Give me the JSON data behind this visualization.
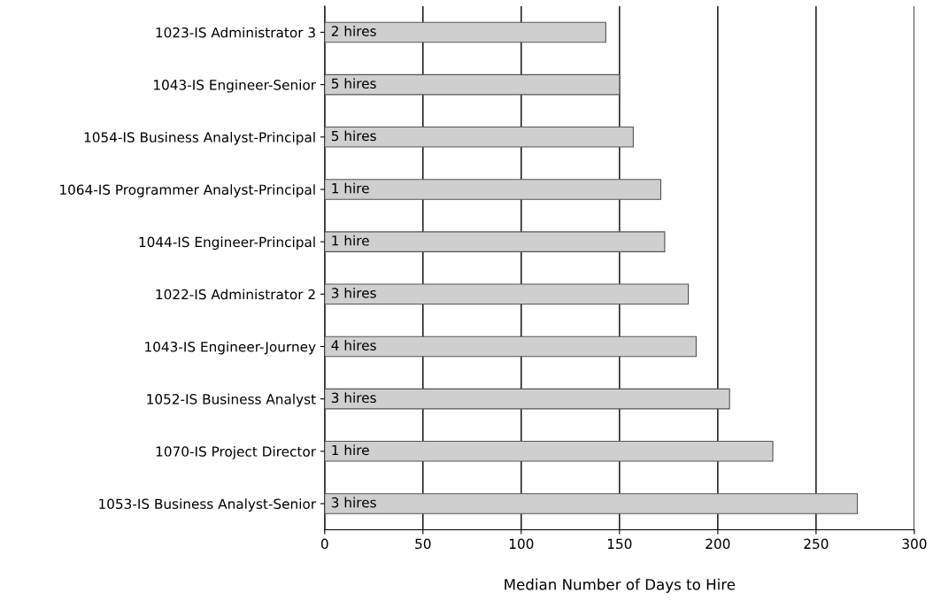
{
  "chart_data": {
    "type": "bar",
    "orientation": "horizontal",
    "xlabel": "Median Number of Days to Hire",
    "categories": [
      "1023-IS Administrator 3",
      "1043-IS Engineer-Senior",
      "1054-IS Business Analyst-Principal",
      "1064-IS Programmer Analyst-Principal",
      "1044-IS Engineer-Principal",
      "1022-IS Administrator 2",
      "1043-IS Engineer-Journey",
      "1052-IS Business Analyst",
      "1070-IS Project Director",
      "1053-IS Business Analyst-Senior"
    ],
    "values": [
      143,
      150,
      157,
      171,
      173,
      185,
      189,
      206,
      228,
      271
    ],
    "annotations": [
      "2 hires",
      "5 hires",
      "5 hires",
      "1 hire",
      "1 hire",
      "3 hires",
      "4 hires",
      "3 hires",
      "1 hire",
      "3 hires"
    ],
    "color": "#cfcfcf",
    "xlim": [
      0,
      300
    ],
    "xticks": [
      0,
      50,
      100,
      150,
      200,
      250,
      300
    ],
    "grid": "x"
  }
}
